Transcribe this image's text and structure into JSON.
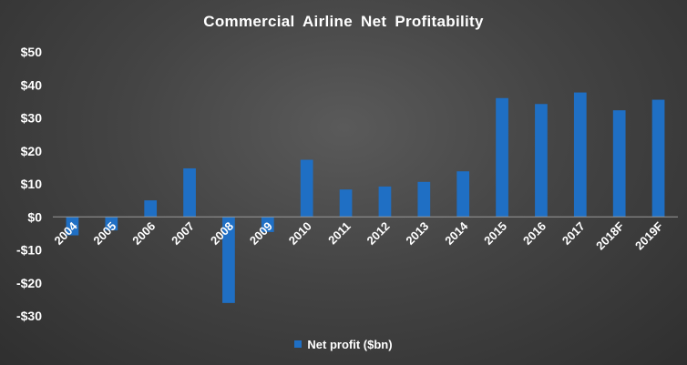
{
  "chart_data": {
    "type": "bar",
    "title": "Commercial  Airline  Net Profitability",
    "xlabel": "",
    "ylabel": "",
    "categories": [
      "2004",
      "2005",
      "2006",
      "2007",
      "2008",
      "2009",
      "2010",
      "2011",
      "2012",
      "2013",
      "2014",
      "2015",
      "2016",
      "2017",
      "2018F",
      "2019F"
    ],
    "series": [
      {
        "name": "Net profit  ($bn)",
        "values": [
          -5.6,
          -4.1,
          5.0,
          14.7,
          -26.1,
          -4.6,
          17.3,
          8.3,
          9.2,
          10.6,
          13.8,
          36.0,
          34.2,
          37.7,
          32.3,
          35.5
        ],
        "color": "#1f6fc4"
      }
    ],
    "ylim": [
      -30,
      50
    ],
    "yticks": [
      {
        "value": 50,
        "label": "$50"
      },
      {
        "value": 40,
        "label": "$40"
      },
      {
        "value": 30,
        "label": "$30"
      },
      {
        "value": 20,
        "label": "$20"
      },
      {
        "value": 10,
        "label": "$10"
      },
      {
        "value": 0,
        "label": "$0"
      },
      {
        "value": -10,
        "label": "-$10"
      },
      {
        "value": -20,
        "label": "-$20"
      },
      {
        "value": -30,
        "label": "-$30"
      }
    ],
    "grid": false,
    "legend": "bottom",
    "x_tick_label_rotation": -45
  },
  "colors": {
    "text": "#ffffff",
    "axis_line": "#9a9a9a"
  }
}
